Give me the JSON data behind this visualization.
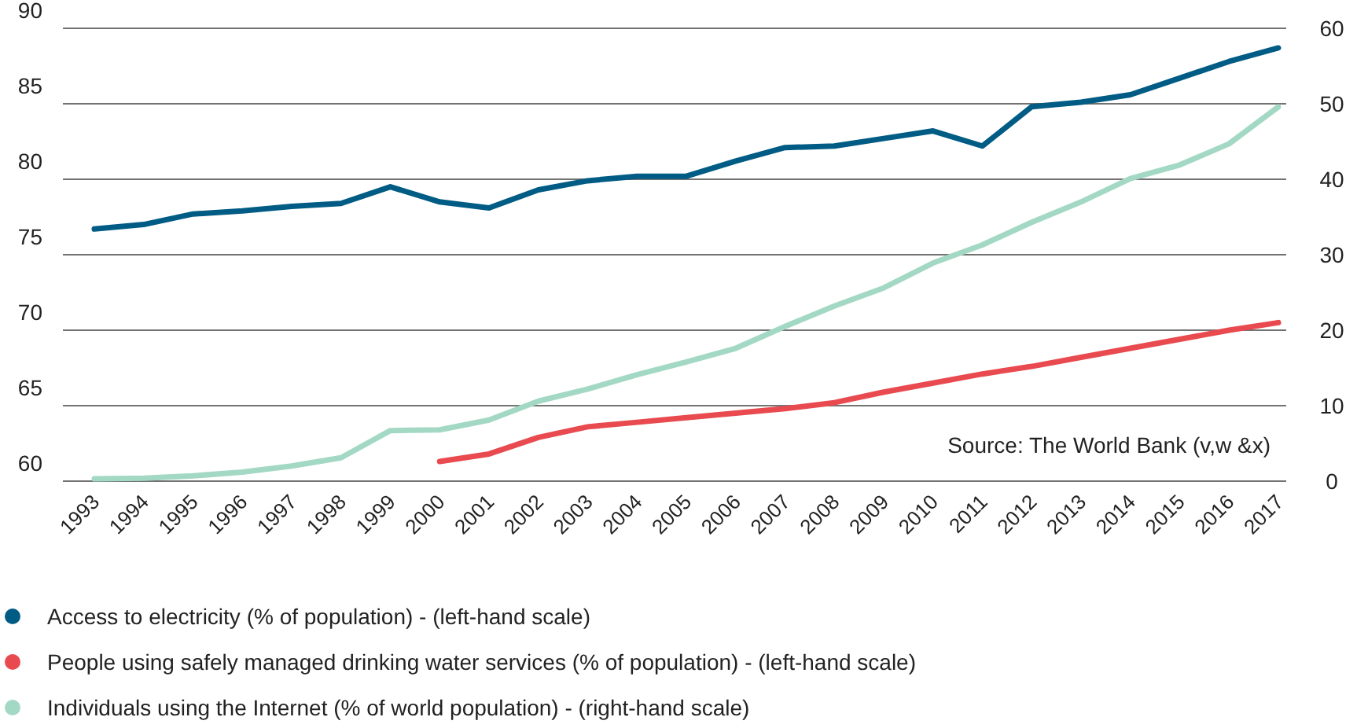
{
  "chart_data": {
    "type": "line",
    "categories": [
      "1993",
      "1994",
      "1995",
      "1996",
      "1997",
      "1998",
      "1999",
      "2000",
      "2001",
      "2002",
      "2003",
      "2004",
      "2005",
      "2006",
      "2007",
      "2008",
      "2009",
      "2010",
      "2011",
      "2012",
      "2013",
      "2014",
      "2015",
      "2016",
      "2017"
    ],
    "series": [
      {
        "name": "Access to electricity (% of population) - (left-hand scale)",
        "color": "#005c84",
        "values": [
          76.7,
          77.0,
          77.7,
          77.9,
          78.2,
          78.4,
          79.5,
          78.5,
          78.1,
          79.3,
          79.9,
          80.2,
          80.2,
          81.2,
          82.1,
          82.2,
          82.7,
          83.2,
          82.2,
          84.8,
          85.1,
          85.6,
          86.7,
          87.8,
          88.7
        ]
      },
      {
        "name": "People using safely managed drinking water services (% of population) - (left-hand scale)",
        "color": "#e84a4f",
        "values": [
          null,
          null,
          null,
          null,
          null,
          null,
          null,
          61.3,
          61.8,
          62.9,
          63.6,
          63.9,
          64.2,
          64.5,
          64.8,
          65.2,
          65.9,
          66.5,
          67.1,
          67.6,
          68.2,
          68.8,
          69.4,
          70.0,
          70.5
        ]
      },
      {
        "name": "Individuals using the Internet (% of world population) - (right-hand scale)",
        "color": "#a3d9c4",
        "axis": "y2",
        "values": [
          0.3,
          0.4,
          0.7,
          1.2,
          2.0,
          3.1,
          6.7,
          6.8,
          8.1,
          10.6,
          12.2,
          14.1,
          15.8,
          17.6,
          20.5,
          23.2,
          25.6,
          28.9,
          31.3,
          34.3,
          37.0,
          40.1,
          41.9,
          44.7,
          49.6
        ]
      }
    ],
    "ylim": [
      60,
      90
    ],
    "yticks": [
      60,
      65,
      70,
      75,
      80,
      85,
      90
    ],
    "y2lim": [
      0,
      60
    ],
    "y2ticks": [
      0,
      10,
      20,
      30,
      40,
      50,
      60
    ],
    "grid": "y",
    "legend": "bottom",
    "marker": "none",
    "line_style": "solid",
    "annotations": [
      "Source: The World Bank (v,w &x)"
    ]
  }
}
